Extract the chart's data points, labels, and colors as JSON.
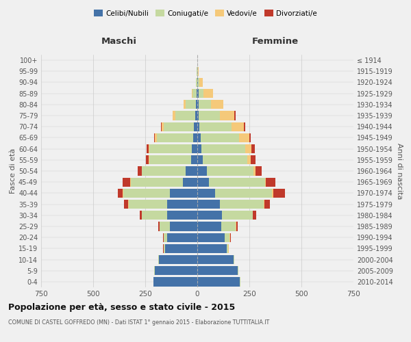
{
  "age_groups": [
    "0-4",
    "5-9",
    "10-14",
    "15-19",
    "20-24",
    "25-29",
    "30-34",
    "35-39",
    "40-44",
    "45-49",
    "50-54",
    "55-59",
    "60-64",
    "65-69",
    "70-74",
    "75-79",
    "80-84",
    "85-89",
    "90-94",
    "95-99",
    "100+"
  ],
  "birth_years": [
    "2010-2014",
    "2005-2009",
    "2000-2004",
    "1995-1999",
    "1990-1994",
    "1985-1989",
    "1980-1984",
    "1975-1979",
    "1970-1974",
    "1965-1969",
    "1960-1964",
    "1955-1959",
    "1950-1954",
    "1945-1949",
    "1940-1944",
    "1935-1939",
    "1930-1934",
    "1925-1929",
    "1920-1924",
    "1915-1919",
    "≤ 1914"
  ],
  "maschi": {
    "celibi": [
      210,
      205,
      185,
      155,
      145,
      130,
      145,
      145,
      130,
      70,
      55,
      30,
      25,
      20,
      15,
      10,
      5,
      2,
      1,
      0,
      0
    ],
    "coniugati": [
      2,
      2,
      2,
      5,
      15,
      50,
      120,
      185,
      225,
      250,
      210,
      200,
      205,
      175,
      145,
      95,
      50,
      20,
      5,
      2,
      0
    ],
    "vedovi": [
      0,
      0,
      0,
      2,
      2,
      2,
      2,
      2,
      2,
      2,
      2,
      3,
      5,
      8,
      10,
      12,
      10,
      5,
      2,
      0,
      0
    ],
    "divorziati": [
      0,
      0,
      0,
      2,
      2,
      5,
      10,
      20,
      25,
      35,
      20,
      15,
      10,
      5,
      5,
      0,
      0,
      0,
      0,
      0,
      0
    ]
  },
  "femmine": {
    "nubili": [
      205,
      195,
      175,
      140,
      130,
      115,
      120,
      110,
      85,
      55,
      45,
      25,
      20,
      15,
      10,
      8,
      5,
      5,
      2,
      1,
      0
    ],
    "coniugate": [
      2,
      2,
      3,
      8,
      25,
      70,
      145,
      210,
      275,
      270,
      225,
      215,
      210,
      185,
      155,
      100,
      60,
      25,
      8,
      2,
      0
    ],
    "vedove": [
      0,
      0,
      0,
      2,
      2,
      2,
      2,
      3,
      5,
      5,
      10,
      18,
      30,
      50,
      60,
      70,
      60,
      45,
      15,
      3,
      0
    ],
    "divorziate": [
      0,
      0,
      0,
      2,
      3,
      8,
      15,
      25,
      55,
      45,
      30,
      20,
      15,
      8,
      5,
      5,
      0,
      0,
      0,
      0,
      0
    ]
  },
  "colors": {
    "celibi": "#4472a8",
    "coniugati": "#c5d9a0",
    "vedovi": "#f5c97a",
    "divorziati": "#c0392b"
  },
  "title": "Popolazione per età, sesso e stato civile - 2015",
  "subtitle": "COMUNE DI CASTEL GOFFREDO (MN) - Dati ISTAT 1° gennaio 2015 - Elaborazione TUTTITALIA.IT",
  "xlabel_left": "Maschi",
  "xlabel_right": "Femmine",
  "ylabel_left": "Fasce di età",
  "ylabel_right": "Anni di nascita",
  "xlim": 750,
  "background_color": "#f0f0f0",
  "grid_color": "#cccccc"
}
